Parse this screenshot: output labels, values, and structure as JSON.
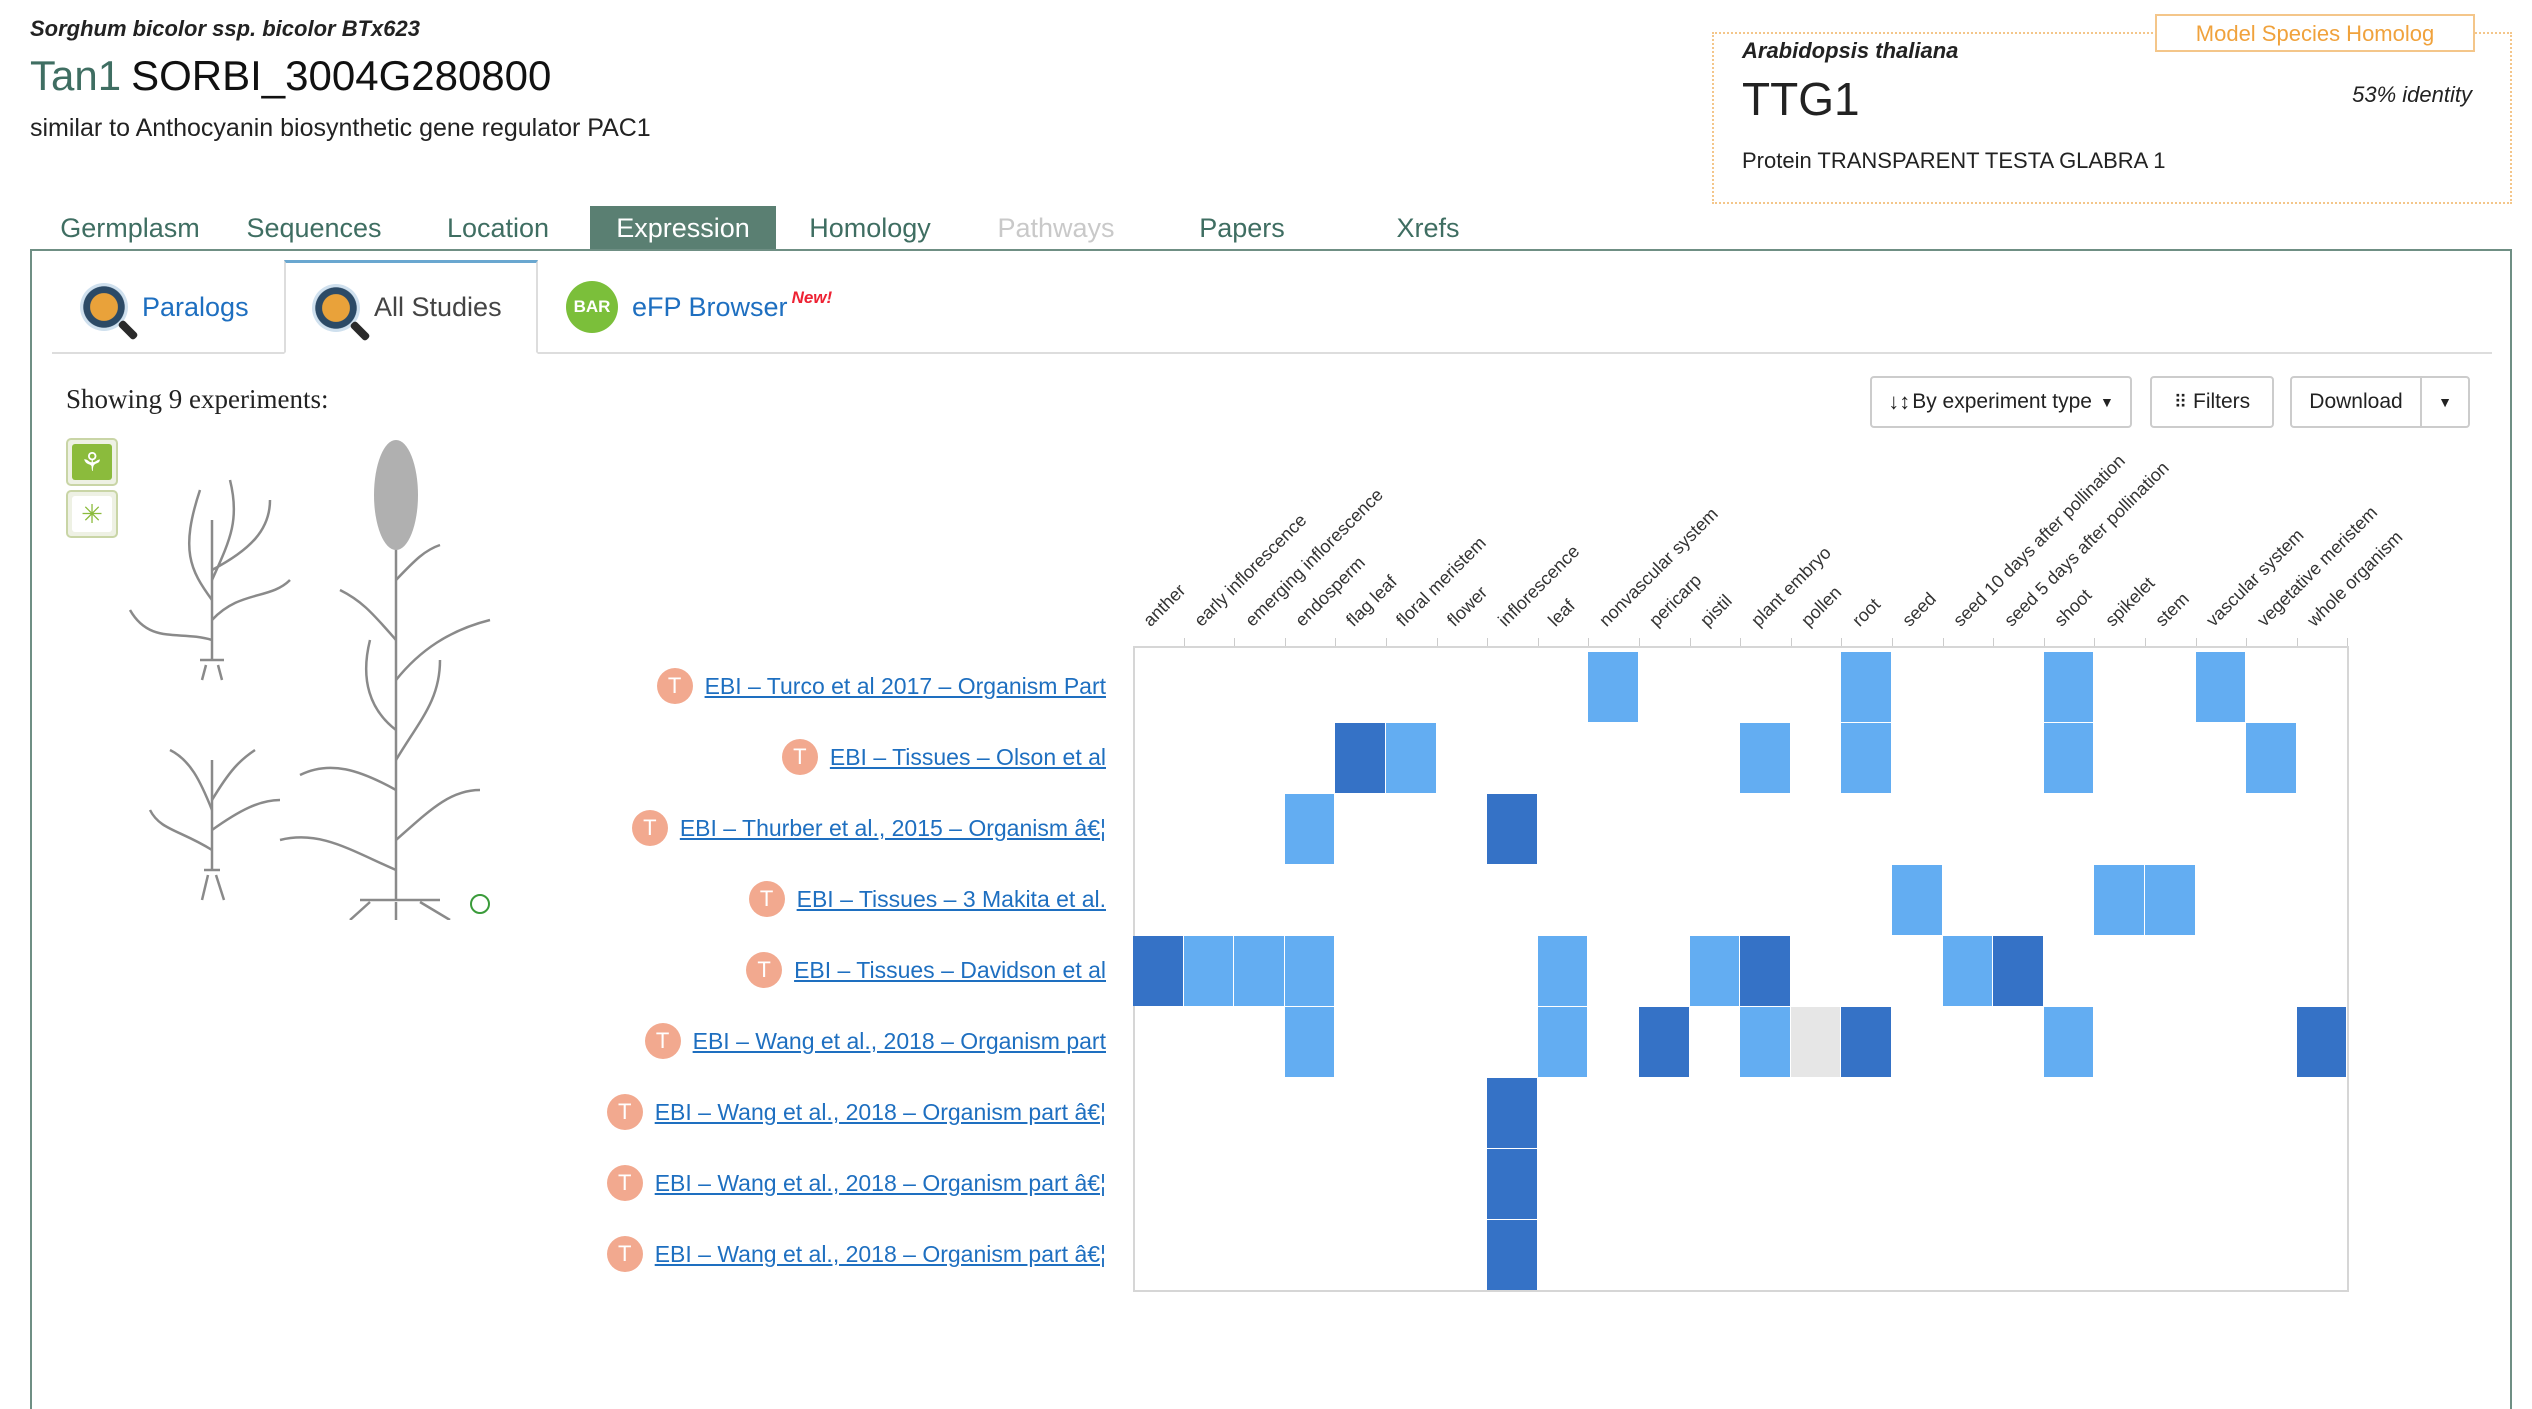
{
  "header": {
    "species": "Sorghum bicolor ssp. bicolor BTx623",
    "gene_symbol": "Tan1",
    "gene_id": "SORBI_3004G280800",
    "description": "similar to Anthocyanin biosynthetic gene regulator PAC1"
  },
  "homolog": {
    "tag": "Model Species Homolog",
    "species": "Arabidopsis thaliana",
    "symbol": "TTG1",
    "identity": "53% identity",
    "description": "Protein TRANSPARENT TESTA GLABRA 1"
  },
  "main_tabs": [
    {
      "label": "Germplasm",
      "state": "normal"
    },
    {
      "label": "Sequences",
      "state": "normal"
    },
    {
      "label": "Location",
      "state": "normal"
    },
    {
      "label": "Expression",
      "state": "active"
    },
    {
      "label": "Homology",
      "state": "normal"
    },
    {
      "label": "Pathways",
      "state": "disabled"
    },
    {
      "label": "Papers",
      "state": "normal"
    },
    {
      "label": "Xrefs",
      "state": "normal"
    }
  ],
  "sub_tabs": {
    "paralogs": "Paralogs",
    "all_studies": "All Studies",
    "efp_browser": "eFP Browser",
    "bar_logo": "BAR",
    "new_badge": "New!"
  },
  "showing": "Showing 9 experiments:",
  "toolbar": {
    "sort_label": "By experiment type",
    "filters_label": "Filters",
    "download_label": "Download"
  },
  "tissues": [
    "anther",
    "early inflorescence",
    "emerging inflorescence",
    "endosperm",
    "flag leaf",
    "floral meristem",
    "flower",
    "inflorescence",
    "leaf",
    "nonvascular system",
    "pericarp",
    "pistil",
    "plant embryo",
    "pollen",
    "root",
    "seed",
    "seed 10 days after pollination",
    "seed 5 days after pollination",
    "shoot",
    "spikelet",
    "stem",
    "vascular system",
    "vegetative meristem",
    "whole organism"
  ],
  "experiments": [
    {
      "badge": "T",
      "label": "EBI – Turco et al 2017 – Organism Part"
    },
    {
      "badge": "T",
      "label": "EBI – Tissues – Olson et al"
    },
    {
      "badge": "T",
      "label": "EBI – Thurber et al., 2015 – Organism â€¦"
    },
    {
      "badge": "T",
      "label": "EBI – Tissues – 3 Makita et al."
    },
    {
      "badge": "T",
      "label": "EBI – Tissues – Davidson et al"
    },
    {
      "badge": "T",
      "label": "EBI – Wang et al., 2018 – Organism part"
    },
    {
      "badge": "T",
      "label": "EBI – Wang et al., 2018 – Organism part â€¦"
    },
    {
      "badge": "T",
      "label": "EBI – Wang et al., 2018 – Organism part â€¦"
    },
    {
      "badge": "T",
      "label": "EBI – Wang et al., 2018 – Organism part â€¦"
    }
  ],
  "heatmap_colors": {
    "high": "#3572c6",
    "low": "#63adf2",
    "na": "#e6e6e6"
  },
  "heatmap": [
    {
      "row": 0,
      "tissue": "nonvascular system",
      "level": "low"
    },
    {
      "row": 0,
      "tissue": "root",
      "level": "low"
    },
    {
      "row": 0,
      "tissue": "shoot",
      "level": "low"
    },
    {
      "row": 0,
      "tissue": "vascular system",
      "level": "low"
    },
    {
      "row": 1,
      "tissue": "flag leaf",
      "level": "high"
    },
    {
      "row": 1,
      "tissue": "floral meristem",
      "level": "low"
    },
    {
      "row": 1,
      "tissue": "plant embryo",
      "level": "low"
    },
    {
      "row": 1,
      "tissue": "root",
      "level": "low"
    },
    {
      "row": 1,
      "tissue": "shoot",
      "level": "low"
    },
    {
      "row": 1,
      "tissue": "vegetative meristem",
      "level": "low"
    },
    {
      "row": 2,
      "tissue": "endosperm",
      "level": "low"
    },
    {
      "row": 2,
      "tissue": "inflorescence",
      "level": "high"
    },
    {
      "row": 3,
      "tissue": "seed",
      "level": "low"
    },
    {
      "row": 3,
      "tissue": "spikelet",
      "level": "low"
    },
    {
      "row": 3,
      "tissue": "stem",
      "level": "low"
    },
    {
      "row": 4,
      "tissue": "anther",
      "level": "high"
    },
    {
      "row": 4,
      "tissue": "early inflorescence",
      "level": "low"
    },
    {
      "row": 4,
      "tissue": "emerging inflorescence",
      "level": "low"
    },
    {
      "row": 4,
      "tissue": "endosperm",
      "level": "low"
    },
    {
      "row": 4,
      "tissue": "leaf",
      "level": "low"
    },
    {
      "row": 4,
      "tissue": "pistil",
      "level": "low"
    },
    {
      "row": 4,
      "tissue": "plant embryo",
      "level": "high"
    },
    {
      "row": 4,
      "tissue": "seed 10 days after pollination",
      "level": "low"
    },
    {
      "row": 4,
      "tissue": "seed 5 days after pollination",
      "level": "high"
    },
    {
      "row": 5,
      "tissue": "endosperm",
      "level": "low"
    },
    {
      "row": 5,
      "tissue": "leaf",
      "level": "low"
    },
    {
      "row": 5,
      "tissue": "pericarp",
      "level": "high"
    },
    {
      "row": 5,
      "tissue": "plant embryo",
      "level": "low"
    },
    {
      "row": 5,
      "tissue": "pollen",
      "level": "na"
    },
    {
      "row": 5,
      "tissue": "root",
      "level": "high"
    },
    {
      "row": 5,
      "tissue": "shoot",
      "level": "low"
    },
    {
      "row": 5,
      "tissue": "whole organism",
      "level": "high"
    },
    {
      "row": 6,
      "tissue": "inflorescence",
      "level": "high"
    },
    {
      "row": 7,
      "tissue": "inflorescence",
      "level": "high"
    },
    {
      "row": 8,
      "tissue": "inflorescence",
      "level": "high"
    }
  ]
}
